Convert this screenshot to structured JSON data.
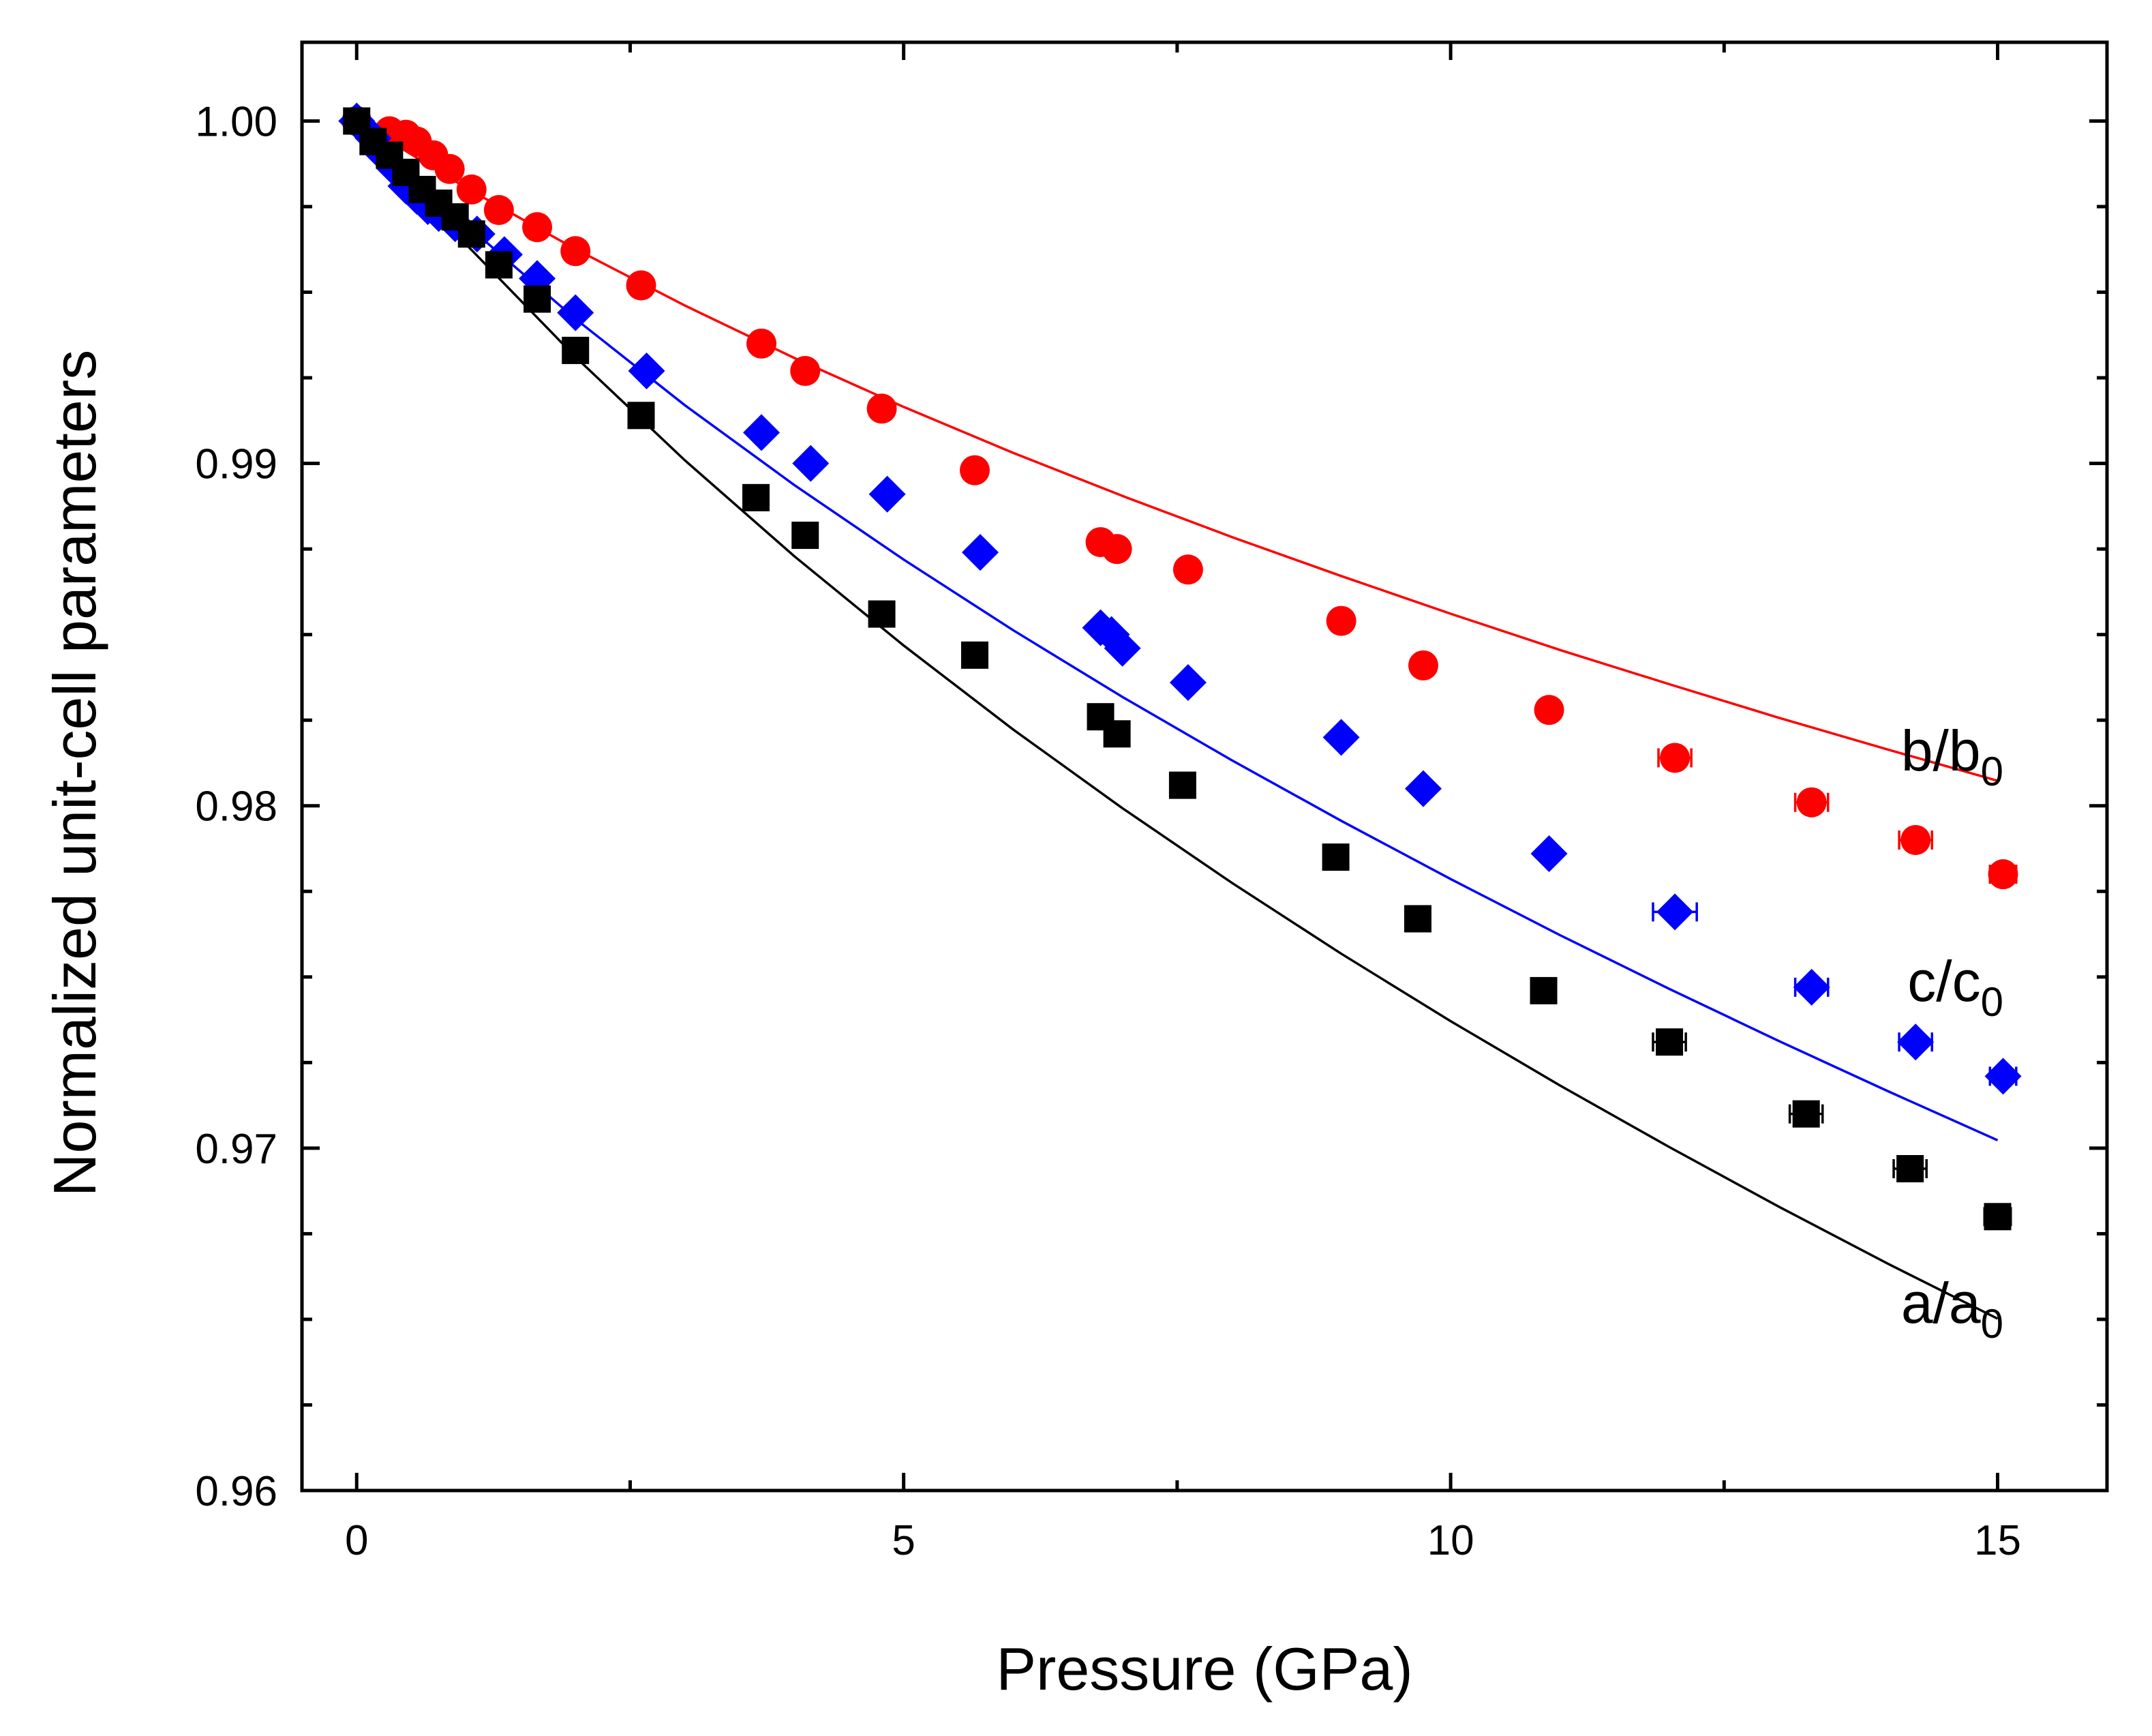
{
  "chart_data": {
    "type": "scatter",
    "title": "",
    "xlabel": "Pressure (GPa)",
    "ylabel": "Normalized unit-cell parameters",
    "xlim": [
      -0.5,
      16
    ],
    "ylim": [
      0.96,
      1.0023
    ],
    "xticks": [
      0,
      5,
      10,
      15
    ],
    "xtick_labels": [
      "0",
      "5",
      "10",
      "15"
    ],
    "yticks": [
      0.96,
      0.97,
      0.98,
      0.99,
      1.0
    ],
    "ytick_labels": [
      "0.96",
      "0.97",
      "0.98",
      "0.99",
      "1.00"
    ],
    "grid": false,
    "legend": "none",
    "series": [
      {
        "name": "b/b0",
        "label_main": "b/b",
        "label_sub": "0",
        "color": "#ff0000",
        "marker": "circle",
        "x": [
          0.0,
          0.3,
          0.45,
          0.55,
          0.7,
          0.85,
          1.05,
          1.3,
          1.65,
          2.0,
          2.6,
          3.7,
          4.1,
          4.8,
          5.65,
          6.8,
          6.95,
          7.6,
          9.0,
          9.75,
          10.9,
          12.05,
          13.3,
          14.25,
          15.05
        ],
        "y": [
          1.0,
          0.9997,
          0.9996,
          0.9994,
          0.999,
          0.9986,
          0.998,
          0.9974,
          0.9969,
          0.9962,
          0.9952,
          0.9935,
          0.9927,
          0.9916,
          0.9898,
          0.9877,
          0.9875,
          0.9869,
          0.9854,
          0.9841,
          0.9828,
          0.9814,
          0.9801,
          0.979,
          0.978
        ],
        "xerr": [
          0,
          0,
          0,
          0,
          0,
          0,
          0,
          0,
          0,
          0,
          0,
          0,
          0,
          0,
          0,
          0,
          0,
          0,
          0,
          0,
          0,
          0.15,
          0.15,
          0.15,
          0.12
        ],
        "fit_x": [
          0,
          1,
          2,
          3,
          4,
          5,
          6,
          7,
          8,
          9,
          10,
          11,
          12,
          13,
          14,
          15
        ],
        "fit_y": [
          1.0,
          0.99805,
          0.99626,
          0.99461,
          0.99308,
          0.99165,
          0.99031,
          0.98905,
          0.98785,
          0.98671,
          0.98561,
          0.98455,
          0.98355,
          0.98257,
          0.98164,
          0.98073
        ]
      },
      {
        "name": "c/c0",
        "label_main": "c/c",
        "label_sub": "0",
        "color": "#0000ff",
        "marker": "diamond",
        "x": [
          0.0,
          0.15,
          0.25,
          0.35,
          0.45,
          0.55,
          0.65,
          0.75,
          0.9,
          1.1,
          1.35,
          1.65,
          2.0,
          2.65,
          3.7,
          4.15,
          4.85,
          5.7,
          6.8,
          6.9,
          7.0,
          7.6,
          9.0,
          9.75,
          10.9,
          12.05,
          13.3,
          14.25,
          15.05
        ],
        "y": [
          1.0,
          0.9995,
          0.999,
          0.9986,
          0.9981,
          0.9978,
          0.9975,
          0.9973,
          0.997,
          0.9967,
          0.9961,
          0.9954,
          0.9944,
          0.9927,
          0.9909,
          0.99,
          0.9891,
          0.9874,
          0.9852,
          0.985,
          0.9846,
          0.9836,
          0.982,
          0.9805,
          0.9786,
          0.9769,
          0.9747,
          0.9731,
          0.9721
        ],
        "xerr": [
          0,
          0,
          0,
          0,
          0,
          0,
          0,
          0,
          0,
          0,
          0,
          0,
          0,
          0,
          0,
          0,
          0,
          0,
          0,
          0,
          0,
          0,
          0,
          0,
          0,
          0.2,
          0.15,
          0.15,
          0.12
        ],
        "fit_x": [
          0,
          1,
          2,
          3,
          4,
          5,
          6,
          7,
          8,
          9,
          10,
          11,
          12,
          13,
          14,
          15
        ],
        "fit_y": [
          1.0,
          0.99697,
          0.99422,
          0.9917,
          0.98937,
          0.98719,
          0.98513,
          0.98318,
          0.98133,
          0.97956,
          0.97786,
          0.97622,
          0.97465,
          0.97313,
          0.97166,
          0.97023
        ]
      },
      {
        "name": "a/a0",
        "label_main": "a/a",
        "label_sub": "0",
        "color": "#000000",
        "marker": "square",
        "x": [
          0.0,
          0.15,
          0.3,
          0.45,
          0.6,
          0.75,
          0.9,
          1.05,
          1.3,
          1.65,
          2.0,
          2.6,
          3.65,
          4.1,
          4.8,
          5.65,
          6.8,
          6.95,
          7.55,
          8.95,
          9.7,
          10.85,
          12.0,
          13.25,
          14.2,
          15.0
        ],
        "y": [
          1.0,
          0.9994,
          0.999,
          0.9985,
          0.998,
          0.9976,
          0.9972,
          0.9967,
          0.9958,
          0.9948,
          0.9933,
          0.9914,
          0.989,
          0.9879,
          0.9856,
          0.9844,
          0.9826,
          0.9821,
          0.9806,
          0.9785,
          0.9767,
          0.9746,
          0.9731,
          0.971,
          0.9694,
          0.968
        ],
        "xerr": [
          0,
          0,
          0,
          0,
          0,
          0,
          0,
          0,
          0,
          0,
          0,
          0,
          0,
          0,
          0,
          0,
          0,
          0,
          0,
          0,
          0,
          0,
          0.15,
          0.15,
          0.15,
          0.12
        ],
        "fit_x": [
          0,
          1,
          2,
          3,
          4,
          5,
          6,
          7,
          8,
          9,
          10,
          11,
          12,
          13,
          14,
          15
        ],
        "fit_y": [
          1.0,
          0.9964,
          0.99311,
          0.99009,
          0.98729,
          0.98468,
          0.98223,
          0.97993,
          0.97775,
          0.97568,
          0.97371,
          0.97183,
          0.97003,
          0.96829,
          0.96662,
          0.96502
        ]
      }
    ]
  }
}
